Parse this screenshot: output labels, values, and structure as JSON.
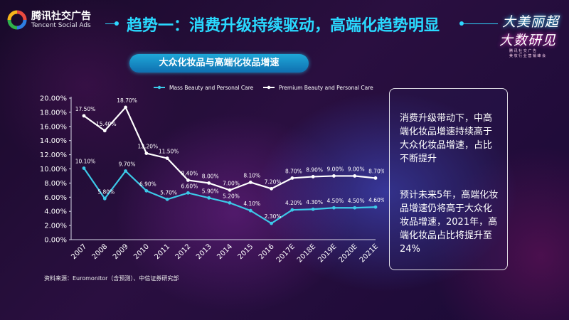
{
  "brand": {
    "name_cn": "腾讯社交广告",
    "name_en": "Tencent Social Ads"
  },
  "header": {
    "title": "趋势一：消费升级持续驱动，高端化趋势明显"
  },
  "corner_logo": {
    "line1": "大美丽超",
    "line2": "大数研见",
    "line3": "腾 讯 社 交 广 告",
    "line4": "美 妆 行 业 营 销 峰 会"
  },
  "colors": {
    "accent": "#2fd7ff",
    "mass": "#3cc9e8",
    "premium": "#ffffff"
  },
  "chart_data": {
    "type": "line",
    "title": "大众化妆品与高端化妆品增速",
    "categories": [
      "2007",
      "2008",
      "2009",
      "2010",
      "2011",
      "2012",
      "2013",
      "2014",
      "2015",
      "2016",
      "2017E",
      "2018E",
      "2019E",
      "2020E",
      "2021E"
    ],
    "series": [
      {
        "name": "Mass Beauty and Personal Care",
        "values": [
          10.1,
          5.8,
          9.7,
          6.9,
          5.7,
          6.6,
          5.9,
          5.2,
          4.1,
          2.3,
          4.2,
          4.3,
          4.5,
          4.5,
          4.6
        ],
        "labels": [
          "10.10%",
          "5.80%",
          "9.70%",
          "6.90%",
          "5.70%",
          "6.60%",
          "5.90%",
          "5.20%",
          "4.10%",
          "2.30%",
          "4.20%",
          "4.30%",
          "4.50%",
          "4.50%",
          "4.60%"
        ]
      },
      {
        "name": "Premium Beauty and Personal Care",
        "values": [
          17.5,
          15.4,
          18.7,
          12.2,
          11.5,
          8.4,
          8.0,
          7.0,
          8.1,
          7.2,
          8.7,
          8.9,
          9.0,
          9.0,
          8.7
        ],
        "labels": [
          "17.50%",
          "15.40%",
          "18.70%",
          "12.20%",
          "11.50%",
          "8.40%",
          "8.00%",
          "7.00%",
          "8.10%",
          "7.20%",
          "8.70%",
          "8.90%",
          "9.00%",
          "9.00%",
          "8.70%"
        ]
      }
    ],
    "ylim": [
      0,
      20
    ],
    "yticks": [
      "0.00%",
      "2.00%",
      "4.00%",
      "6.00%",
      "8.00%",
      "10.00%",
      "12.00%",
      "14.00%",
      "16.00%",
      "18.00%",
      "20.00%"
    ],
    "grid": false,
    "legend": "top"
  },
  "notes": {
    "p1": "消费升级带动下，中高端化妆品增速持续高于大众化妆品增速，占比不断提升",
    "p2": "预计未来5年，高端化妆品增速仍将高于大众化妆品增速，2021年，高端化妆品占比将提升至24%"
  },
  "source": "资料来源：Euromonitor（含预测）、中信证券研究部"
}
